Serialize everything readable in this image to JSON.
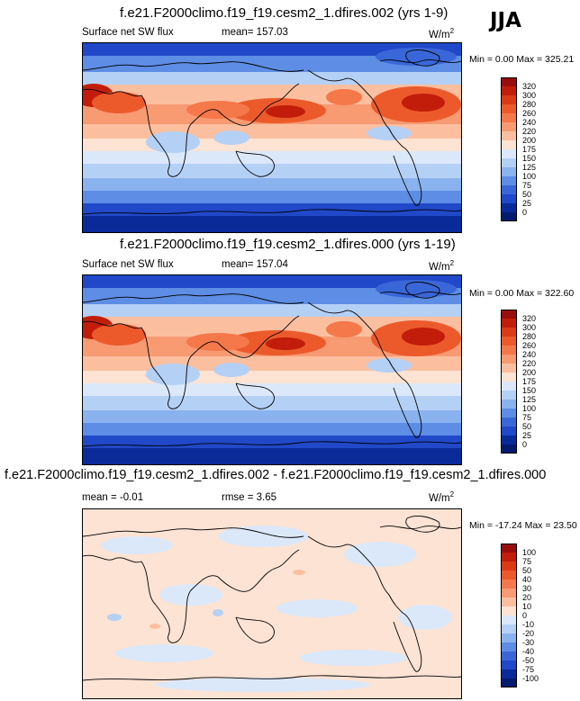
{
  "season": "JJA",
  "panels": [
    {
      "title": "f.e21.F2000climo.f19_f19.cesm2_1.dfires.002 (yrs 1-9)",
      "left_label": "Surface net SW flux",
      "mean_label": "mean= 157.03",
      "units": "W/m",
      "units_exp": "2",
      "minmax": "Min =   0.00 Max = 325.21",
      "levels": [
        "320",
        "300",
        "280",
        "260",
        "240",
        "220",
        "200",
        "175",
        "150",
        "125",
        "100",
        "75",
        "50",
        "25",
        "0"
      ],
      "colors": [
        "#9a0d0d",
        "#c21d0b",
        "#dc3a16",
        "#ec5a2c",
        "#f4784a",
        "#f89a72",
        "#fbbfa0",
        "#fde3d3",
        "#dbe8fa",
        "#b5d0f5",
        "#8ab2ee",
        "#5d8de4",
        "#3a67d8",
        "#2048c8",
        "#0a2a9a",
        "#031a6e"
      ]
    },
    {
      "title": "f.e21.F2000climo.f19_f19.cesm2_1.dfires.000 (yrs 1-19)",
      "left_label": "Surface net SW flux",
      "mean_label": "mean= 157.04",
      "units": "W/m",
      "units_exp": "2",
      "minmax": "Min =   0.00 Max = 322.60",
      "levels": [
        "320",
        "300",
        "280",
        "260",
        "240",
        "220",
        "200",
        "175",
        "150",
        "125",
        "100",
        "75",
        "50",
        "25",
        "0"
      ],
      "colors": [
        "#9a0d0d",
        "#c21d0b",
        "#dc3a16",
        "#ec5a2c",
        "#f4784a",
        "#f89a72",
        "#fbbfa0",
        "#fde3d3",
        "#dbe8fa",
        "#b5d0f5",
        "#8ab2ee",
        "#5d8de4",
        "#3a67d8",
        "#2048c8",
        "#0a2a9a",
        "#031a6e"
      ]
    },
    {
      "title": "f.e21.F2000climo.f19_f19.cesm2_1.dfires.002 - f.e21.F2000climo.f19_f19.cesm2_1.dfires.000",
      "left_label": "mean =  -0.01",
      "mean_label": "rmse =   3.65",
      "units": "W/m",
      "units_exp": "2",
      "minmax": "Min = -17.24 Max =  23.50",
      "levels": [
        "100",
        "75",
        "50",
        "40",
        "30",
        "20",
        "10",
        "0",
        "-10",
        "-20",
        "-30",
        "-40",
        "-50",
        "-75",
        "-100"
      ],
      "colors": [
        "#9a0d0d",
        "#c21d0b",
        "#dc3a16",
        "#ec5a2c",
        "#f4784a",
        "#f89a72",
        "#fbbfa0",
        "#fde3d3",
        "#dbe8fa",
        "#b5d0f5",
        "#8ab2ee",
        "#5d8de4",
        "#3a67d8",
        "#2048c8",
        "#0a2a9a",
        "#031a6e"
      ]
    }
  ]
}
